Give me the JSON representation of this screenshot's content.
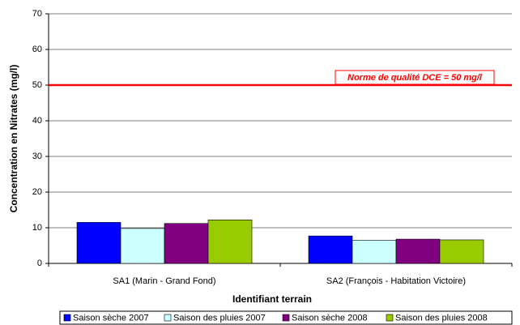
{
  "chart_data": {
    "type": "bar",
    "categories": [
      "SA1 (Marin - Grand Fond)",
      "SA2 (François - Habitation Victoire)"
    ],
    "series": [
      {
        "name": "Saison sèche 2007",
        "color": "#0000ff",
        "values": [
          11.5,
          7.7
        ]
      },
      {
        "name": "Saison des pluies 2007",
        "color": "#ccffff",
        "values": [
          9.8,
          6.5
        ]
      },
      {
        "name": "Saison sèche 2008",
        "color": "#800080",
        "values": [
          11.2,
          6.8
        ]
      },
      {
        "name": "Saison des pluies 2008",
        "color": "#99cc00",
        "values": [
          12.2,
          6.6
        ]
      }
    ],
    "xlabel": "Identifiant terrain",
    "ylabel": "Concentration en Nitrates (mg/l)",
    "ylim": [
      0,
      70
    ],
    "yticks": [
      0,
      10,
      20,
      30,
      40,
      50,
      60,
      70
    ],
    "grid": true,
    "reference_line": {
      "value": 50,
      "label": "Norme de qualité DCE = 50 mg/l",
      "color": "#ff0000"
    },
    "legend": "bottom"
  }
}
